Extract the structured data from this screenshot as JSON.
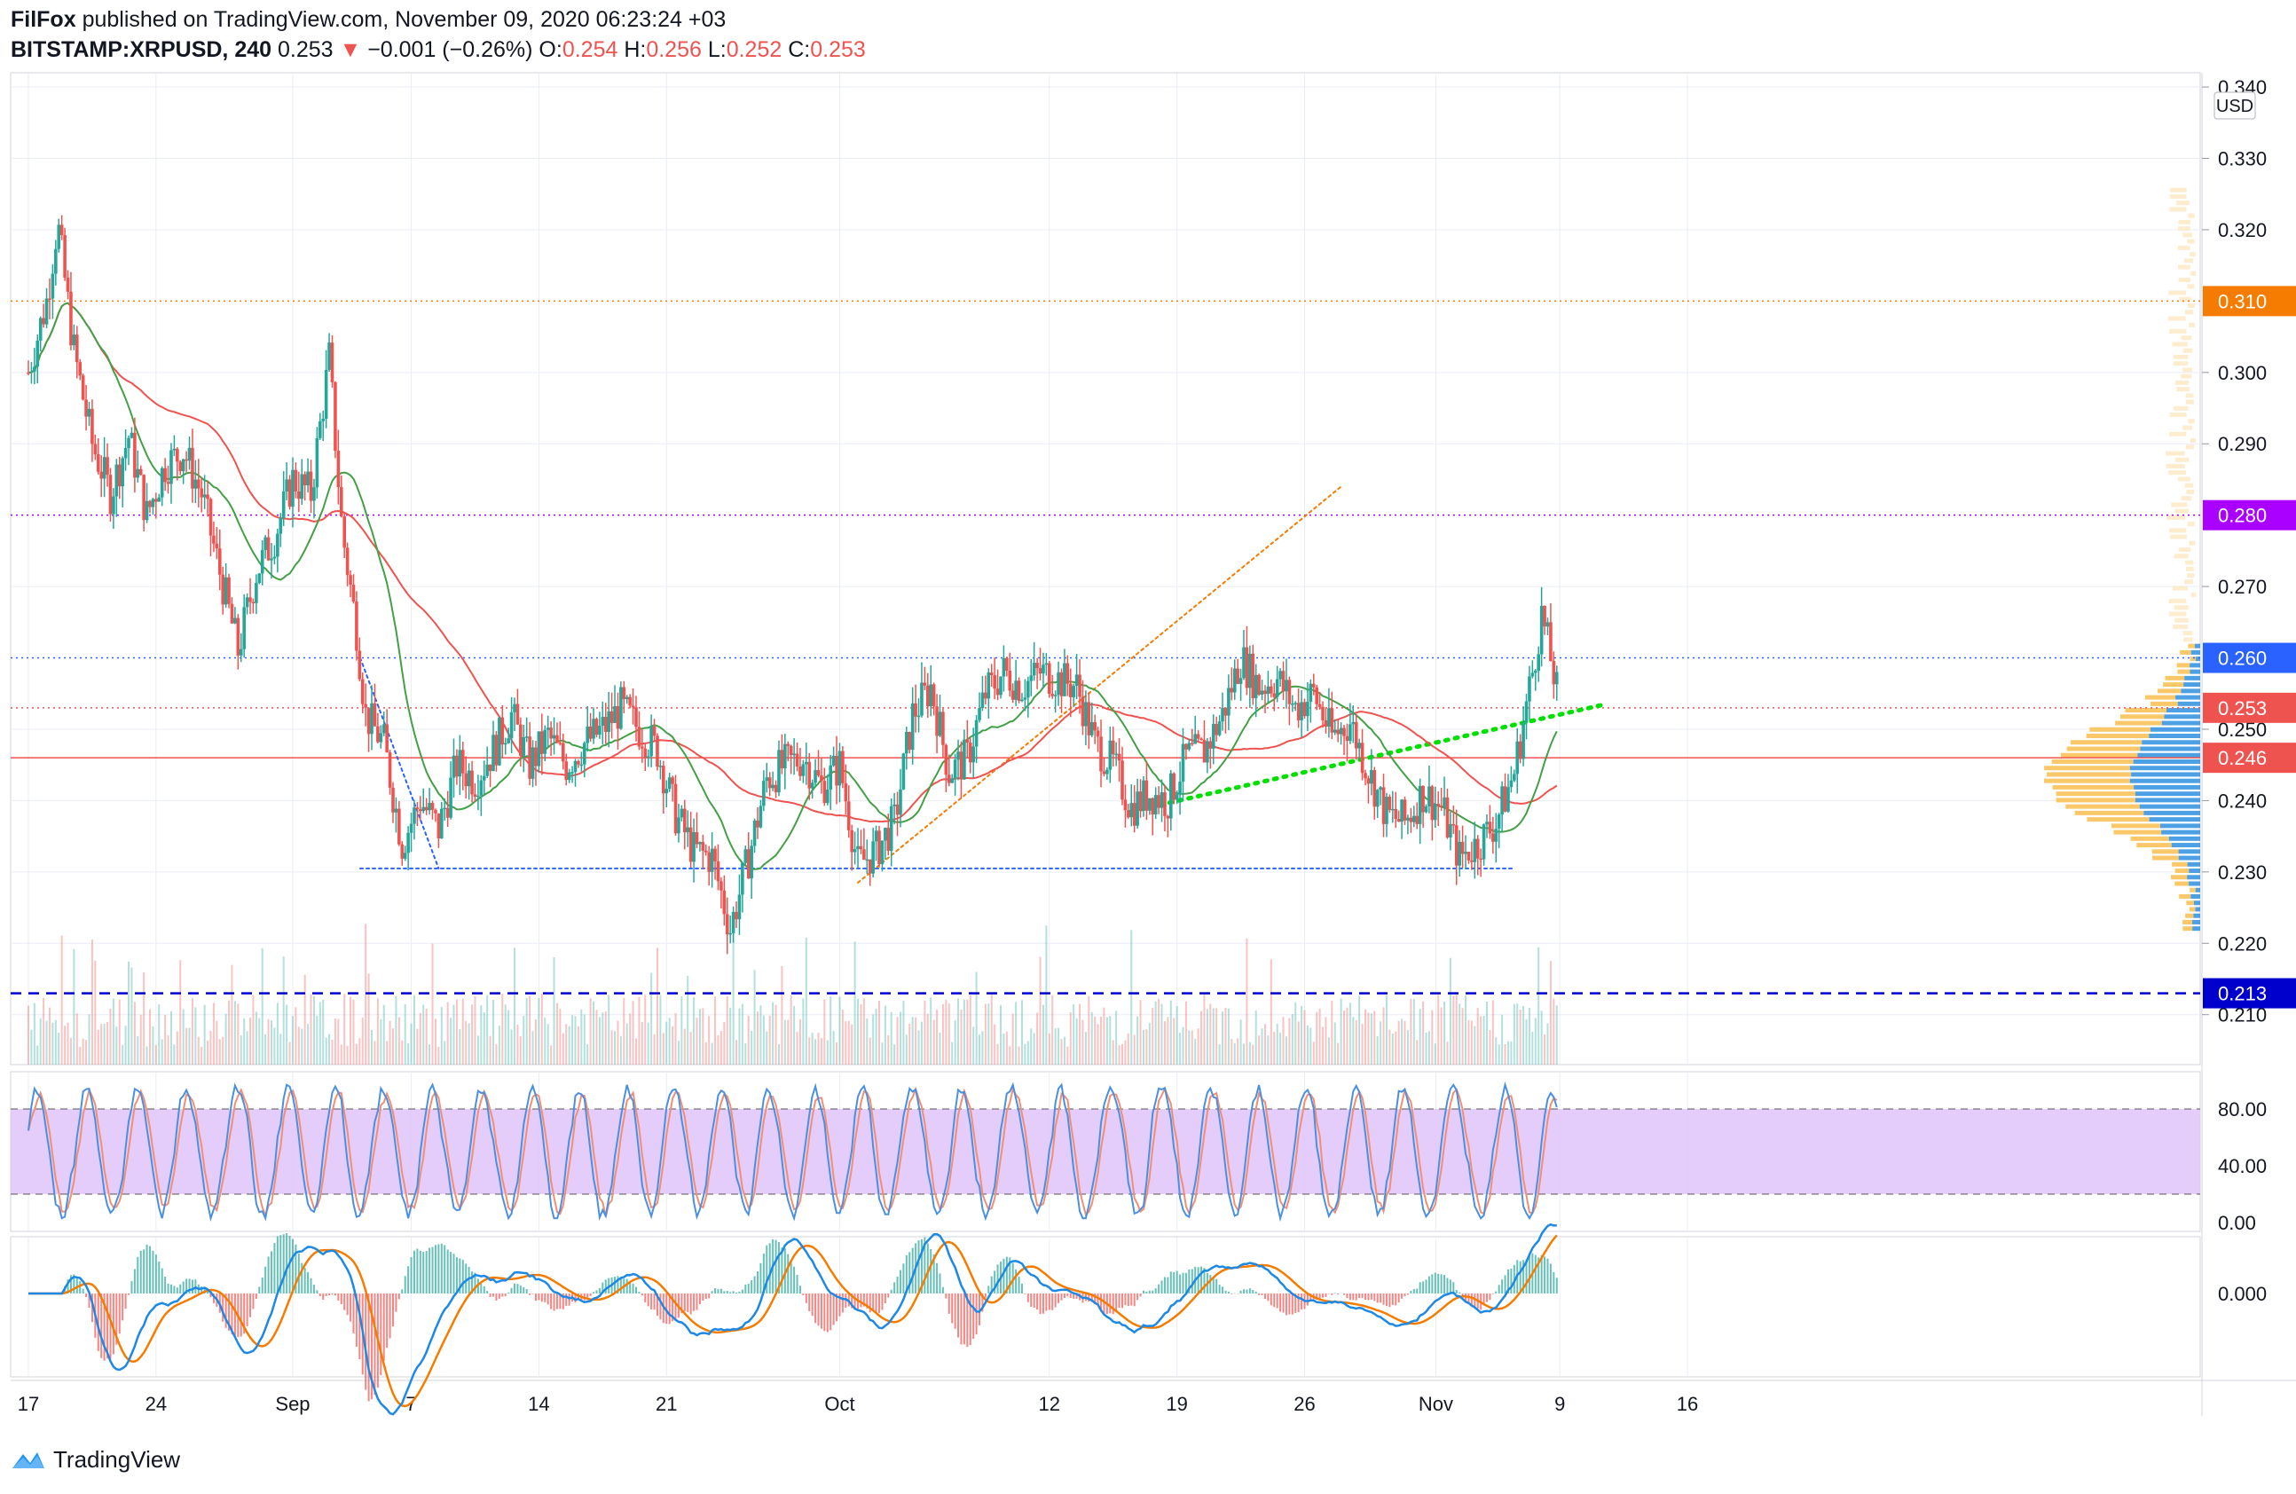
{
  "header": {
    "author": "FilFox",
    "published_text": "published on TradingView.com, November 09, 2020 06:23:24 +03",
    "symbol": "BITSTAMP:XRPUSD, 240",
    "last": "0.253",
    "change": "−0.001 (−0.26%)",
    "o_label": "O:",
    "o": "0.254",
    "h_label": "H:",
    "h": "0.256",
    "l_label": "L:",
    "l": "0.252",
    "c_label": "C:",
    "c": "0.253"
  },
  "footer": {
    "brand": "TradingView"
  },
  "colors": {
    "up": "#26a69a",
    "down": "#ef5350",
    "grid": "#e9eef5",
    "ma_fast": "#43a047",
    "ma_slow": "#ef5350",
    "orange": "#f57c00",
    "purple": "#aa00ff",
    "blue": "#2962ff",
    "stoch_k": "#4a90e2",
    "stoch_d": "#f48e73",
    "stoch_band": "#e1c4fa",
    "macd": "#1e88e5",
    "signal": "#f57c00"
  },
  "chart_data": {
    "type": "candlestick",
    "currency": "USD",
    "price_axis": {
      "ylim": [
        0.203,
        0.342
      ],
      "ticks": [
        "0.210",
        "0.220",
        "0.230",
        "0.240",
        "0.250",
        "0.270",
        "0.290",
        "0.300",
        "0.320",
        "0.330",
        "0.340"
      ]
    },
    "x_axis": {
      "ticks": [
        "17",
        "24",
        "Sep",
        "7",
        "14",
        "21",
        "Oct",
        "12",
        "19",
        "26",
        "Nov",
        "9",
        "16"
      ],
      "tick_days": [
        0,
        7,
        14.5,
        21,
        28,
        35,
        44.5,
        56,
        63,
        70,
        77.2,
        84,
        91
      ]
    },
    "price_levels": [
      {
        "label": "0.310",
        "value": 0.31,
        "style": "dotted",
        "color": "#f57c00"
      },
      {
        "label": "0.280",
        "value": 0.28,
        "style": "dotted",
        "color": "#aa00ff"
      },
      {
        "label": "0.260",
        "value": 0.26,
        "style": "dotted",
        "color": "#2962ff"
      },
      {
        "label": "0.253",
        "value": 0.253,
        "style": "dotted",
        "color": "#ef5350"
      },
      {
        "label": "0.246",
        "value": 0.246,
        "style": "solid",
        "color": "#ef5350"
      },
      {
        "label": "0.213",
        "value": 0.213,
        "style": "dashed",
        "color": "#0000cc"
      }
    ],
    "trendlines": [
      {
        "color": "#2962ff",
        "points": [
          [
            18.2,
            0.26
          ],
          [
            22.5,
            0.2305
          ]
        ]
      },
      {
        "color": "#2962ff",
        "points": [
          [
            18.2,
            0.2305
          ],
          [
            81.5,
            0.2305
          ]
        ]
      },
      {
        "color": "#f57c00",
        "points": [
          [
            45.5,
            0.2285
          ],
          [
            72.0,
            0.284
          ]
        ]
      },
      {
        "color": "#00e000",
        "points": [
          [
            60.5,
            0.2385
          ],
          [
            86.5,
            0.2535
          ]
        ]
      }
    ],
    "price_path": [
      [
        0,
        0.3
      ],
      [
        1,
        0.31
      ],
      [
        1.6,
        0.321
      ],
      [
        2.5,
        0.303
      ],
      [
        3.5,
        0.29
      ],
      [
        4.5,
        0.283
      ],
      [
        5.5,
        0.291
      ],
      [
        6.5,
        0.28
      ],
      [
        7.5,
        0.287
      ],
      [
        8.5,
        0.289
      ],
      [
        9.5,
        0.283
      ],
      [
        10.5,
        0.272
      ],
      [
        11.5,
        0.261
      ],
      [
        12.5,
        0.272
      ],
      [
        13.5,
        0.277
      ],
      [
        14.5,
        0.285
      ],
      [
        15.5,
        0.283
      ],
      [
        16.5,
        0.302
      ],
      [
        17.2,
        0.278
      ],
      [
        18,
        0.264
      ],
      [
        18.5,
        0.252
      ],
      [
        19.5,
        0.248
      ],
      [
        20.5,
        0.234
      ],
      [
        21.5,
        0.24
      ],
      [
        22.5,
        0.236
      ],
      [
        23.5,
        0.245
      ],
      [
        24.5,
        0.243
      ],
      [
        25.5,
        0.247
      ],
      [
        26.5,
        0.252
      ],
      [
        27.5,
        0.245
      ],
      [
        28.5,
        0.249
      ],
      [
        29.5,
        0.245
      ],
      [
        30.5,
        0.248
      ],
      [
        31.5,
        0.25
      ],
      [
        32.5,
        0.253
      ],
      [
        33.5,
        0.25
      ],
      [
        34.5,
        0.247
      ],
      [
        35.5,
        0.238
      ],
      [
        36.5,
        0.233
      ],
      [
        37.5,
        0.232
      ],
      [
        38.5,
        0.222
      ],
      [
        39.5,
        0.232
      ],
      [
        40.5,
        0.243
      ],
      [
        41.5,
        0.245
      ],
      [
        42.5,
        0.246
      ],
      [
        43.5,
        0.242
      ],
      [
        44.5,
        0.245
      ],
      [
        45.5,
        0.231
      ],
      [
        46.5,
        0.233
      ],
      [
        47.5,
        0.237
      ],
      [
        48.5,
        0.252
      ],
      [
        49.5,
        0.256
      ],
      [
        50.5,
        0.244
      ],
      [
        51.5,
        0.246
      ],
      [
        52.5,
        0.255
      ],
      [
        53.5,
        0.258
      ],
      [
        54.5,
        0.256
      ],
      [
        55.5,
        0.258
      ],
      [
        56.5,
        0.257
      ],
      [
        57.5,
        0.256
      ],
      [
        58.5,
        0.248
      ],
      [
        59.5,
        0.245
      ],
      [
        60.5,
        0.239
      ],
      [
        61.5,
        0.241
      ],
      [
        62.5,
        0.24
      ],
      [
        63.5,
        0.246
      ],
      [
        64.5,
        0.247
      ],
      [
        65.5,
        0.252
      ],
      [
        66.5,
        0.26
      ],
      [
        67.5,
        0.256
      ],
      [
        68.5,
        0.257
      ],
      [
        69.5,
        0.253
      ],
      [
        70.5,
        0.255
      ],
      [
        71.5,
        0.249
      ],
      [
        72.5,
        0.251
      ],
      [
        73.5,
        0.244
      ],
      [
        74.5,
        0.238
      ],
      [
        75.5,
        0.237
      ],
      [
        76.5,
        0.241
      ],
      [
        77.5,
        0.239
      ],
      [
        78.5,
        0.232
      ],
      [
        79.5,
        0.234
      ],
      [
        80.5,
        0.237
      ],
      [
        81.5,
        0.244
      ],
      [
        82.5,
        0.258
      ],
      [
        83,
        0.266
      ],
      [
        83.5,
        0.26
      ],
      [
        84,
        0.253
      ]
    ],
    "stochastic": {
      "upper": 80.0,
      "lower": 20.0,
      "ticks": [
        "80.00",
        "40.00",
        "0.00"
      ]
    },
    "macd": {
      "tick": "0.000"
    }
  }
}
